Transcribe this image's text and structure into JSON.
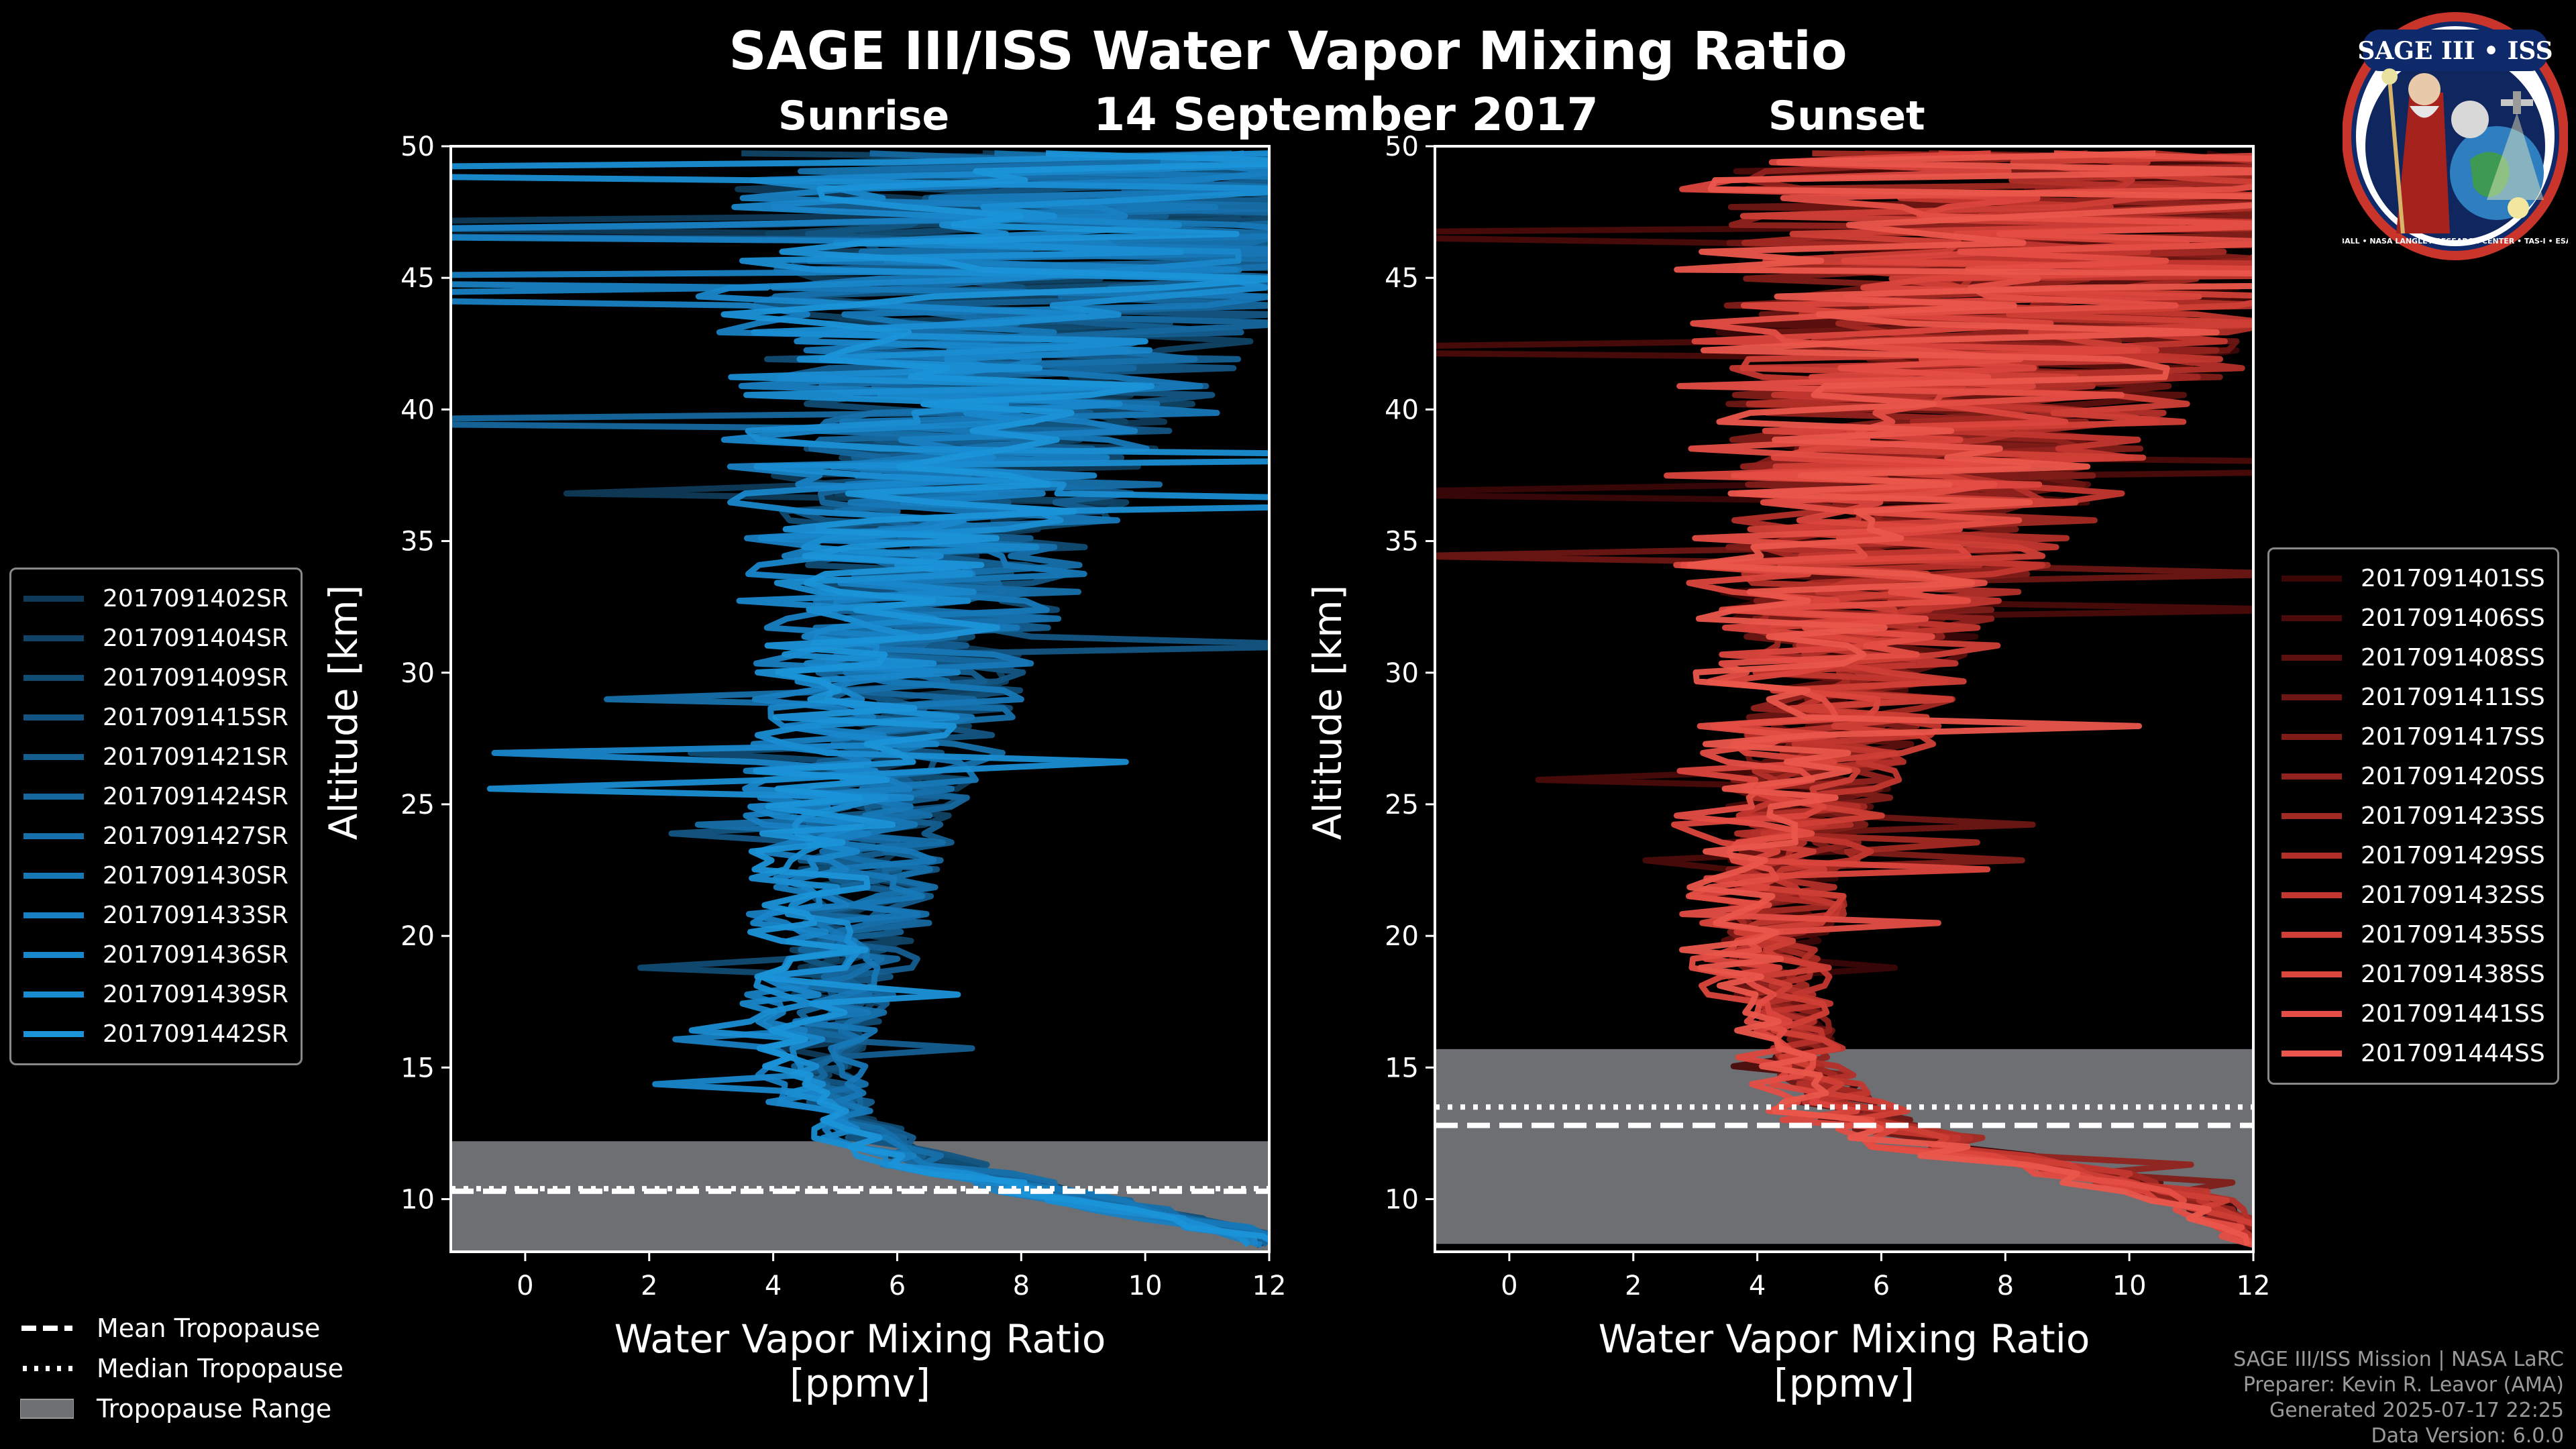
{
  "title": "SAGE III/ISS Water Vapor Mixing Ratio",
  "date": "14 September 2017",
  "colors": {
    "sunrise": "#1a8fd0",
    "sunset": "#e8554a",
    "tropopause_fill": "#6e6f73"
  },
  "logo": {
    "name": "SAGE III • ISS",
    "caption": "BALL • NASA LANGLEY RESEARCH CENTER • TAS-I • ESA"
  },
  "tropopause_legend": {
    "mean": "Mean Tropopause",
    "median": "Median Tropopause",
    "range": "Tropopause Range"
  },
  "footer": {
    "mission": "SAGE III/ISS Mission | NASA LaRC",
    "preparer": "Preparer: Kevin R. Leavor (AMA)",
    "generated": "Generated 2025-07-17 22:25",
    "version": "Data Version: 6.0.0"
  },
  "chart_data": [
    {
      "type": "line",
      "panel": "sunrise",
      "title": "Sunrise",
      "xlabel": "Water Vapor Mixing Ratio\n[ppmv]",
      "ylabel": "Altitude [km]",
      "xlim": [
        -1.2,
        12
      ],
      "ylim": [
        8,
        50
      ],
      "xticks": [
        0,
        2,
        4,
        6,
        8,
        10,
        12
      ],
      "yticks": [
        10,
        15,
        20,
        25,
        30,
        35,
        40,
        45,
        50
      ],
      "tropopause": {
        "mean": 10.3,
        "median": 10.4,
        "range": [
          8.0,
          12.2
        ]
      },
      "altitude_km": [
        8.5,
        10,
        11,
        12,
        13,
        14,
        15,
        16,
        17,
        18,
        19,
        20,
        22,
        24,
        26,
        28,
        30,
        32,
        34,
        36,
        38,
        40,
        42,
        44,
        46,
        48,
        50
      ],
      "mean_profile_ppmv": [
        12.0,
        9.0,
        7.0,
        5.8,
        5.0,
        4.7,
        4.6,
        4.6,
        4.7,
        4.8,
        4.9,
        5.0,
        5.1,
        5.3,
        5.5,
        5.7,
        5.9,
        6.1,
        6.3,
        6.6,
        6.9,
        7.2,
        7.5,
        7.8,
        8.2,
        8.6,
        9.0
      ],
      "spread_ppmv": [
        0.3,
        0.5,
        0.6,
        0.6,
        0.6,
        0.6,
        0.6,
        0.7,
        0.8,
        0.9,
        1.0,
        1.0,
        1.1,
        1.3,
        1.5,
        1.7,
        1.9,
        2.1,
        2.4,
        2.8,
        3.2,
        3.6,
        4.0,
        4.5,
        5.0,
        5.5,
        6.0
      ],
      "series": [
        {
          "name": "2017091402SR",
          "color": "#0e3a57"
        },
        {
          "name": "2017091404SR",
          "color": "#104365"
        },
        {
          "name": "2017091409SR",
          "color": "#114c73"
        },
        {
          "name": "2017091415SR",
          "color": "#135582"
        },
        {
          "name": "2017091421SR",
          "color": "#145e90"
        },
        {
          "name": "2017091424SR",
          "color": "#15679e"
        },
        {
          "name": "2017091427SR",
          "color": "#1670ab"
        },
        {
          "name": "2017091430SR",
          "color": "#1778b7"
        },
        {
          "name": "2017091433SR",
          "color": "#1880c2"
        },
        {
          "name": "2017091436SR",
          "color": "#1987cb"
        },
        {
          "name": "2017091439SR",
          "color": "#1a8dd2"
        },
        {
          "name": "2017091442SR",
          "color": "#1b93d8"
        }
      ]
    },
    {
      "type": "line",
      "panel": "sunset",
      "title": "Sunset",
      "xlabel": "Water Vapor Mixing Ratio\n[ppmv]",
      "ylabel": "Altitude [km]",
      "xlim": [
        -1.2,
        12
      ],
      "ylim": [
        8,
        50
      ],
      "xticks": [
        0,
        2,
        4,
        6,
        8,
        10,
        12
      ],
      "yticks": [
        10,
        15,
        20,
        25,
        30,
        35,
        40,
        45,
        50
      ],
      "tropopause": {
        "mean": 12.8,
        "median": 13.5,
        "range": [
          8.3,
          15.7
        ]
      },
      "altitude_km": [
        8.5,
        10,
        11,
        12,
        13,
        14,
        15,
        16,
        17,
        18,
        19,
        20,
        22,
        24,
        26,
        28,
        30,
        32,
        34,
        36,
        38,
        40,
        42,
        44,
        46,
        48,
        50
      ],
      "mean_profile_ppmv": [
        12.0,
        11.0,
        9.0,
        7.0,
        5.5,
        4.9,
        4.7,
        4.5,
        4.3,
        4.1,
        4.0,
        4.0,
        4.1,
        4.3,
        4.6,
        4.9,
        5.2,
        5.5,
        5.8,
        6.1,
        6.5,
        6.9,
        7.3,
        7.8,
        8.3,
        8.8,
        9.3
      ],
      "spread_ppmv": [
        0.3,
        0.5,
        0.7,
        0.8,
        0.8,
        0.7,
        0.6,
        0.6,
        0.6,
        0.7,
        0.8,
        0.9,
        1.0,
        1.2,
        1.4,
        1.6,
        1.9,
        2.2,
        2.6,
        3.0,
        3.4,
        3.8,
        4.3,
        4.8,
        5.3,
        5.8,
        6.3
      ],
      "series": [
        {
          "name": "2017091401SS",
          "color": "#3a0606"
        },
        {
          "name": "2017091406SS",
          "color": "#4a0b0a"
        },
        {
          "name": "2017091408SS",
          "color": "#5b100e"
        },
        {
          "name": "2017091411SS",
          "color": "#6d1613"
        },
        {
          "name": "2017091417SS",
          "color": "#7f1c18"
        },
        {
          "name": "2017091420SS",
          "color": "#91221d"
        },
        {
          "name": "2017091423SS",
          "color": "#a32923"
        },
        {
          "name": "2017091429SS",
          "color": "#b33029"
        },
        {
          "name": "2017091432SS",
          "color": "#c2372f"
        },
        {
          "name": "2017091435SS",
          "color": "#cf3f36"
        },
        {
          "name": "2017091438SS",
          "color": "#db463d"
        },
        {
          "name": "2017091441SS",
          "color": "#e44e44"
        },
        {
          "name": "2017091444SS",
          "color": "#ea564b"
        }
      ]
    }
  ]
}
